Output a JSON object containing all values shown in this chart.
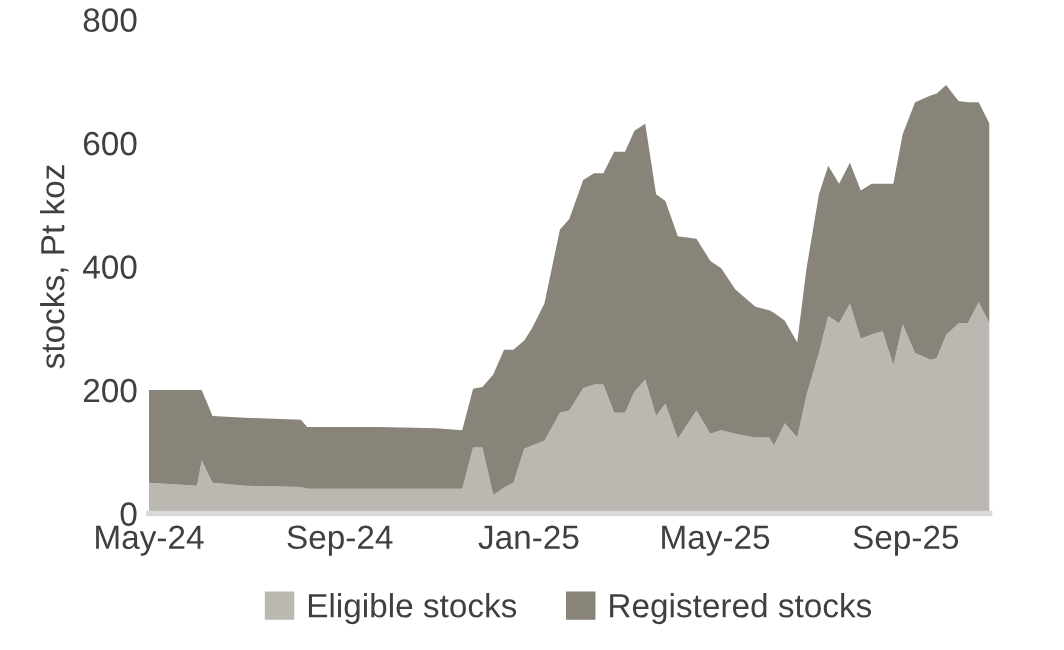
{
  "chart_data": {
    "type": "area",
    "stacked": true,
    "ylabel": "stocks, Pt koz",
    "x": [
      "2024-05-01",
      "2024-06-01",
      "2024-06-04",
      "2024-06-11",
      "2024-07-02",
      "2024-08-07",
      "2024-08-11",
      "2024-09-26",
      "2024-11-02",
      "2024-11-19",
      "2024-11-26",
      "2024-12-02",
      "2024-12-09",
      "2024-12-16",
      "2024-12-22",
      "2024-12-29",
      "2025-01-03",
      "2025-01-11",
      "2025-01-21",
      "2025-01-27",
      "2025-02-05",
      "2025-02-12",
      "2025-02-18",
      "2025-02-25",
      "2025-03-04",
      "2025-03-10",
      "2025-03-17",
      "2025-03-24",
      "2025-03-30",
      "2025-04-07",
      "2025-04-19",
      "2025-04-28",
      "2025-05-05",
      "2025-05-14",
      "2025-05-27",
      "2025-06-05",
      "2025-06-08",
      "2025-06-15",
      "2025-06-23",
      "2025-06-29",
      "2025-07-07",
      "2025-07-13",
      "2025-07-20",
      "2025-07-27",
      "2025-08-03",
      "2025-08-10",
      "2025-08-17",
      "2025-08-24",
      "2025-08-30",
      "2025-09-07",
      "2025-09-17",
      "2025-09-21",
      "2025-09-27",
      "2025-10-05",
      "2025-10-11",
      "2025-10-18",
      "2025-10-25"
    ],
    "series": [
      {
        "name": "Eligible stocks",
        "color": "#bab8b0",
        "values": [
          50,
          45,
          86,
          50,
          45,
          43,
          40,
          40,
          40,
          40,
          107,
          107,
          30,
          42,
          50,
          105,
          110,
          118,
          163,
          167,
          203,
          209,
          209,
          163,
          163,
          197,
          217,
          158,
          178,
          121,
          167,
          129,
          135,
          129,
          123,
          123,
          110,
          146,
          123,
          192,
          260,
          320,
          308,
          340,
          283,
          290,
          295,
          240,
          306,
          260,
          249,
          252,
          289,
          308,
          308,
          342,
          308
        ]
      },
      {
        "name": "Registered stocks",
        "color": "#89847a",
        "values": [
          150,
          155,
          114,
          108,
          110,
          109,
          100,
          100,
          98,
          95,
          95,
          98,
          195,
          223,
          215,
          175,
          190,
          222,
          297,
          310,
          337,
          342,
          342,
          423,
          423,
          423,
          414,
          359,
          328,
          328,
          278,
          280,
          262,
          234,
          212,
          206,
          215,
          166,
          154,
          205,
          257,
          243,
          226,
          228,
          240,
          244,
          239,
          294,
          308,
          406,
          428,
          428,
          405,
          360,
          358,
          324,
          323
        ]
      }
    ],
    "xlim": [
      "2024-05-01",
      "2025-10-25"
    ],
    "xticks": [
      {
        "value": "2024-05-01",
        "label": "May-24"
      },
      {
        "value": "2024-09-01",
        "label": "Sep-24"
      },
      {
        "value": "2025-01-01",
        "label": "Jan-25"
      },
      {
        "value": "2025-05-01",
        "label": "May-25"
      },
      {
        "value": "2025-09-01",
        "label": "Sep-25"
      }
    ],
    "ylim": [
      0,
      800
    ],
    "yticks": [
      0,
      200,
      400,
      600,
      800
    ],
    "grid": false,
    "legend": "bottom"
  }
}
